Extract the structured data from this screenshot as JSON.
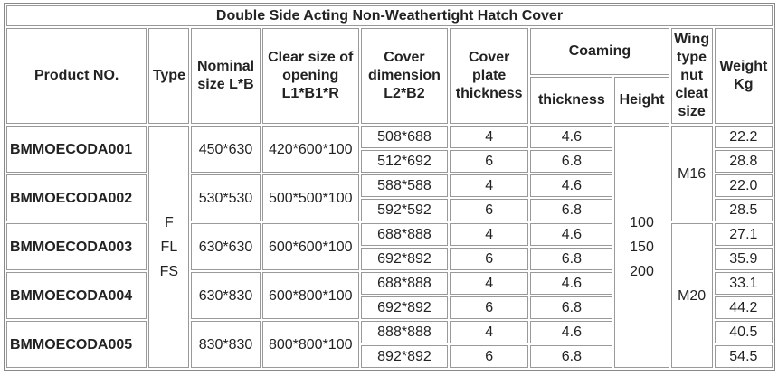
{
  "title": "Double Side Acting Non-Weathertight Hatch Cover",
  "headers": {
    "product": "Product NO.",
    "type": "Type",
    "nominal": "Nominal size L*B",
    "clear": "Clear size of opening L1*B1*R",
    "cover": "Cover dimension L2*B2",
    "plate": "Cover plate thickness",
    "coaming": "Coaming",
    "thickness": "thickness",
    "height": "Height",
    "wing": "Wing type nut cleat size",
    "weight": "Weight Kg"
  },
  "type": [
    "F",
    "FL",
    "FS"
  ],
  "height": [
    "100",
    "150",
    "200"
  ],
  "wing": [
    "M16",
    "M20"
  ],
  "groups": [
    {
      "product": "BMMOECODA001",
      "nominal": "450*630",
      "clear": "420*600*100",
      "rows": [
        {
          "cover": "508*688",
          "plate": "4",
          "thickness": "4.6",
          "weight": "22.2"
        },
        {
          "cover": "512*692",
          "plate": "6",
          "thickness": "6.8",
          "weight": "28.8"
        }
      ]
    },
    {
      "product": "BMMOECODA002",
      "nominal": "530*530",
      "clear": "500*500*100",
      "rows": [
        {
          "cover": "588*588",
          "plate": "4",
          "thickness": "4.6",
          "weight": "22.0"
        },
        {
          "cover": "592*592",
          "plate": "6",
          "thickness": "6.8",
          "weight": "28.5"
        }
      ]
    },
    {
      "product": "BMMOECODA003",
      "nominal": "630*630",
      "clear": "600*600*100",
      "rows": [
        {
          "cover": "688*888",
          "plate": "4",
          "thickness": "4.6",
          "weight": "27.1"
        },
        {
          "cover": "692*892",
          "plate": "6",
          "thickness": "6.8",
          "weight": "35.9"
        }
      ]
    },
    {
      "product": "BMMOECODA004",
      "nominal": "630*830",
      "clear": "600*800*100",
      "rows": [
        {
          "cover": "688*888",
          "plate": "4",
          "thickness": "4.6",
          "weight": "33.1"
        },
        {
          "cover": "692*892",
          "plate": "6",
          "thickness": "6.8",
          "weight": "44.2"
        }
      ]
    },
    {
      "product": "BMMOECODA005",
      "nominal": "830*830",
      "clear": "800*800*100",
      "rows": [
        {
          "cover": "888*888",
          "plate": "4",
          "thickness": "4.6",
          "weight": "40.5"
        },
        {
          "cover": "892*892",
          "plate": "6",
          "thickness": "6.8",
          "weight": "54.5"
        }
      ]
    }
  ]
}
